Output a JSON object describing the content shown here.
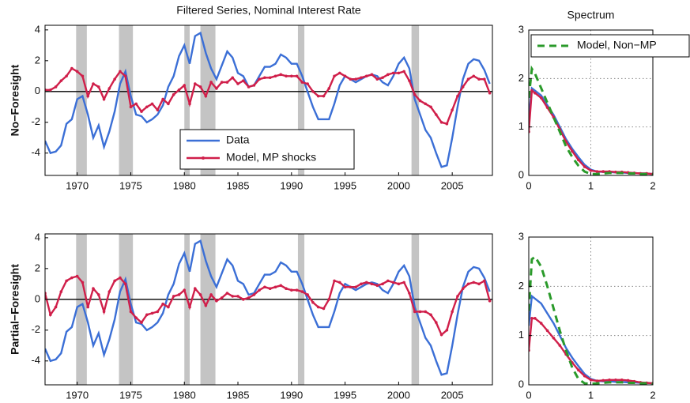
{
  "chart_data": [
    {
      "type": "line",
      "title": "Filtered Series, Nominal Interest Rate",
      "ylabel": "No−Foresight",
      "x": [
        1967,
        1967.5,
        1968,
        1968.5,
        1969,
        1969.5,
        1970,
        1970.5,
        1971,
        1971.5,
        1972,
        1972.5,
        1973,
        1973.5,
        1974,
        1974.5,
        1975,
        1975.5,
        1976,
        1976.5,
        1977,
        1977.5,
        1978,
        1978.5,
        1979,
        1979.5,
        1980,
        1980.5,
        1981,
        1981.5,
        1982,
        1982.5,
        1983,
        1983.5,
        1984,
        1984.5,
        1985,
        1985.5,
        1986,
        1986.5,
        1987,
        1987.5,
        1988,
        1988.5,
        1989,
        1989.5,
        1990,
        1990.5,
        1991,
        1991.5,
        1992,
        1992.5,
        1993,
        1993.5,
        1994,
        1994.5,
        1995,
        1995.5,
        1996,
        1996.5,
        1997,
        1997.5,
        1998,
        1998.5,
        1999,
        1999.5,
        2000,
        2000.5,
        2001,
        2001.5,
        2002,
        2002.5,
        2003,
        2003.5,
        2004,
        2004.5,
        2005,
        2005.5,
        2006,
        2006.5,
        2007,
        2007.5,
        2008,
        2008.5
      ],
      "series": [
        {
          "name": "Data",
          "color": "#3b6fd6",
          "linestyle": "-",
          "marker": false,
          "values": [
            -3.2,
            -4,
            -3.9,
            -3.5,
            -2.1,
            -1.8,
            -0.5,
            -0.3,
            -1.5,
            -3.0,
            -2.2,
            -3.6,
            -2.6,
            -1.3,
            0.5,
            1.3,
            -0.3,
            -1.5,
            -1.6,
            -2.0,
            -1.8,
            -1.5,
            -0.9,
            0.3,
            1.0,
            2.3,
            3.0,
            1.8,
            3.6,
            3.8,
            2.5,
            1.5,
            0.8,
            1.7,
            2.6,
            2.2,
            1.2,
            1.0,
            0.3,
            0.4,
            1.0,
            1.6,
            1.6,
            1.8,
            2.4,
            2.2,
            1.8,
            1.8,
            1.0,
            0.0,
            -1.0,
            -1.8,
            -1.8,
            -1.8,
            -0.8,
            0.4,
            1.0,
            0.8,
            0.6,
            0.8,
            1.0,
            1.1,
            1.0,
            0.6,
            0.4,
            1.0,
            1.8,
            2.2,
            1.5,
            -0.5,
            -1.5,
            -2.5,
            -3.0,
            -4.0,
            -4.9,
            -4.8,
            -3.0,
            -1.0,
            0.8,
            1.8,
            2.1,
            2.0,
            1.4,
            0.5
          ]
        },
        {
          "name": "Model, MP shocks",
          "color": "#d01f4a",
          "linestyle": "-",
          "marker": true,
          "values": [
            0.1,
            0.1,
            0.3,
            0.7,
            1.0,
            1.5,
            1.3,
            1.0,
            -0.3,
            0.5,
            0.3,
            -0.5,
            0.2,
            0.8,
            1.3,
            1.0,
            -1.0,
            -0.8,
            -1.3,
            -1.0,
            -0.8,
            -1.2,
            -0.5,
            -0.8,
            -0.2,
            0.1,
            0.4,
            -0.8,
            0.5,
            0.3,
            -0.3,
            0.6,
            0.2,
            0.6,
            0.6,
            0.9,
            0.5,
            0.7,
            0.3,
            0.4,
            0.8,
            0.9,
            0.9,
            1.0,
            1.1,
            1.0,
            1.0,
            1.0,
            0.6,
            0.5,
            0.0,
            -0.3,
            -0.3,
            0.2,
            1.0,
            1.2,
            1.0,
            0.8,
            0.8,
            0.9,
            1.0,
            1.1,
            0.8,
            0.9,
            1.1,
            1.2,
            1.2,
            1.3,
            0.7,
            -0.2,
            -0.6,
            -0.8,
            -1.0,
            -1.5,
            -2.0,
            -2.1,
            -1.2,
            -0.3,
            0.3,
            0.8,
            1.0,
            0.8,
            0.8,
            -0.1
          ]
        }
      ],
      "shaded": [
        [
          1969.9,
          1970.9
        ],
        [
          1973.9,
          1975.2
        ],
        [
          1980.0,
          1980.5
        ],
        [
          1981.5,
          1982.9
        ],
        [
          1990.6,
          1991.2
        ],
        [
          2001.2,
          2001.9
        ]
      ],
      "xlim": [
        1967,
        2008.75
      ],
      "xticks": [
        1970,
        1975,
        1980,
        1985,
        1990,
        1995,
        2000,
        2005
      ],
      "ylim": [
        -5.45,
        4.3
      ],
      "yticks": [
        -4,
        -2,
        0,
        2,
        4
      ],
      "grid": false,
      "legend": "lower center"
    },
    {
      "type": "line",
      "title": "Spectrum",
      "x": [
        0,
        0.05,
        0.1,
        0.2,
        0.3,
        0.4,
        0.5,
        0.6,
        0.7,
        0.8,
        0.9,
        1.0,
        1.1,
        1.2,
        1.3,
        1.4,
        1.5,
        1.6,
        1.7,
        1.8,
        1.9,
        2.0
      ],
      "series": [
        {
          "color": "#3b6fd6",
          "linestyle": "-",
          "marker": false,
          "values": [
            1.2,
            1.8,
            1.75,
            1.65,
            1.45,
            1.25,
            1.0,
            0.75,
            0.55,
            0.38,
            0.22,
            0.12,
            0.08,
            0.07,
            0.07,
            0.06,
            0.06,
            0.05,
            0.05,
            0.04,
            0.04,
            0.03
          ]
        },
        {
          "color": "#d01f4a",
          "linestyle": "-",
          "marker": true,
          "values": [
            0.9,
            1.75,
            1.7,
            1.6,
            1.4,
            1.2,
            0.95,
            0.7,
            0.5,
            0.32,
            0.18,
            0.1,
            0.08,
            0.08,
            0.08,
            0.07,
            0.07,
            0.06,
            0.05,
            0.04,
            0.04,
            0.03
          ]
        },
        {
          "name": "Model, Non−MP",
          "color": "#2a9a2a",
          "linestyle": "--",
          "marker": false,
          "values": [
            1.6,
            2.2,
            2.1,
            1.8,
            1.5,
            1.2,
            0.9,
            0.6,
            0.38,
            0.2,
            0.08,
            0.03,
            0.03,
            0.04,
            0.05,
            0.05,
            0.05,
            0.04,
            0.04,
            0.03,
            0.03,
            0.02
          ]
        }
      ],
      "xlim": [
        0,
        2
      ],
      "xticks": [
        0,
        1,
        2
      ],
      "ylim": [
        0,
        3
      ],
      "yticks": [
        0,
        1,
        2,
        3
      ],
      "grid": true,
      "legend": "upper right"
    },
    {
      "type": "line",
      "ylabel": "Partial−Foresight",
      "x": [
        1967,
        1967.5,
        1968,
        1968.5,
        1969,
        1969.5,
        1970,
        1970.5,
        1971,
        1971.5,
        1972,
        1972.5,
        1973,
        1973.5,
        1974,
        1974.5,
        1975,
        1975.5,
        1976,
        1976.5,
        1977,
        1977.5,
        1978,
        1978.5,
        1979,
        1979.5,
        1980,
        1980.5,
        1981,
        1981.5,
        1982,
        1982.5,
        1983,
        1983.5,
        1984,
        1984.5,
        1985,
        1985.5,
        1986,
        1986.5,
        1987,
        1987.5,
        1988,
        1988.5,
        1989,
        1989.5,
        1990,
        1990.5,
        1991,
        1991.5,
        1992,
        1992.5,
        1993,
        1993.5,
        1994,
        1994.5,
        1995,
        1995.5,
        1996,
        1996.5,
        1997,
        1997.5,
        1998,
        1998.5,
        1999,
        1999.5,
        2000,
        2000.5,
        2001,
        2001.5,
        2002,
        2002.5,
        2003,
        2003.5,
        2004,
        2004.5,
        2005,
        2005.5,
        2006,
        2006.5,
        2007,
        2007.5,
        2008,
        2008.5
      ],
      "series": [
        {
          "color": "#3b6fd6",
          "linestyle": "-",
          "marker": false,
          "values": [
            -3.2,
            -4,
            -3.9,
            -3.5,
            -2.1,
            -1.8,
            -0.5,
            -0.3,
            -1.5,
            -3.0,
            -2.2,
            -3.6,
            -2.6,
            -1.3,
            0.5,
            1.3,
            -0.3,
            -1.5,
            -1.6,
            -2.0,
            -1.8,
            -1.5,
            -0.9,
            0.3,
            1.0,
            2.3,
            3.0,
            1.8,
            3.6,
            3.8,
            2.5,
            1.5,
            0.8,
            1.7,
            2.6,
            2.2,
            1.2,
            1.0,
            0.3,
            0.4,
            1.0,
            1.6,
            1.6,
            1.8,
            2.4,
            2.2,
            1.8,
            1.8,
            1.0,
            0.0,
            -1.0,
            -1.8,
            -1.8,
            -1.8,
            -0.8,
            0.4,
            1.0,
            0.8,
            0.6,
            0.8,
            1.0,
            1.1,
            1.0,
            0.6,
            0.4,
            1.0,
            1.8,
            2.2,
            1.5,
            -0.5,
            -1.5,
            -2.5,
            -3.0,
            -4.0,
            -4.9,
            -4.8,
            -3.0,
            -1.0,
            0.8,
            1.8,
            2.1,
            2.0,
            1.4,
            0.5
          ]
        },
        {
          "color": "#d01f4a",
          "linestyle": "-",
          "marker": true,
          "values": [
            0.4,
            -1.0,
            -0.5,
            0.5,
            1.2,
            1.4,
            1.5,
            1.1,
            -0.5,
            0.7,
            0.3,
            -0.8,
            0.5,
            1.2,
            1.4,
            1.0,
            -0.8,
            -1.2,
            -1.5,
            -1.0,
            -0.9,
            -0.8,
            -0.3,
            -0.5,
            0.2,
            0.3,
            0.6,
            -0.5,
            0.7,
            0.3,
            -0.4,
            0.3,
            -0.1,
            0.1,
            0.4,
            0.2,
            0.2,
            0.0,
            0.1,
            0.3,
            0.6,
            0.8,
            0.7,
            0.8,
            0.9,
            0.7,
            0.6,
            0.6,
            0.5,
            0.3,
            -0.2,
            -0.5,
            -0.6,
            0.0,
            1.2,
            1.1,
            0.8,
            0.8,
            0.8,
            1.0,
            1.1,
            1.0,
            0.9,
            1.0,
            1.2,
            1.1,
            1.0,
            1.1,
            0.4,
            -0.8,
            -0.8,
            -0.8,
            -1.0,
            -1.5,
            -2.3,
            -2.0,
            -0.8,
            0.2,
            0.7,
            1.0,
            1.1,
            1.0,
            1.2,
            -0.1
          ]
        }
      ],
      "shaded": [
        [
          1969.9,
          1970.9
        ],
        [
          1973.9,
          1975.2
        ],
        [
          1980.0,
          1980.5
        ],
        [
          1981.5,
          1982.9
        ],
        [
          1990.6,
          1991.2
        ],
        [
          2001.2,
          2001.9
        ]
      ],
      "xlim": [
        1967,
        2008.75
      ],
      "xticks": [
        1970,
        1975,
        1980,
        1985,
        1990,
        1995,
        2000,
        2005
      ],
      "ylim": [
        -5.55,
        4.25
      ],
      "yticks": [
        -4,
        -2,
        0,
        2,
        4
      ],
      "grid": false
    },
    {
      "type": "line",
      "x": [
        0,
        0.05,
        0.1,
        0.2,
        0.3,
        0.4,
        0.5,
        0.6,
        0.7,
        0.8,
        0.9,
        1.0,
        1.1,
        1.2,
        1.3,
        1.4,
        1.5,
        1.6,
        1.7,
        1.8,
        1.9,
        2.0
      ],
      "series": [
        {
          "color": "#3b6fd6",
          "linestyle": "-",
          "marker": false,
          "values": [
            1.2,
            1.8,
            1.75,
            1.65,
            1.45,
            1.25,
            1.0,
            0.75,
            0.55,
            0.38,
            0.22,
            0.12,
            0.08,
            0.07,
            0.07,
            0.06,
            0.06,
            0.05,
            0.05,
            0.04,
            0.04,
            0.03
          ]
        },
        {
          "color": "#d01f4a",
          "linestyle": "-",
          "marker": true,
          "values": [
            0.7,
            1.35,
            1.35,
            1.25,
            1.1,
            0.95,
            0.8,
            0.62,
            0.45,
            0.3,
            0.18,
            0.1,
            0.08,
            0.09,
            0.1,
            0.1,
            0.1,
            0.09,
            0.07,
            0.05,
            0.04,
            0.03
          ]
        },
        {
          "color": "#2a9a2a",
          "linestyle": "--",
          "marker": false,
          "values": [
            1.5,
            2.55,
            2.6,
            2.4,
            2.0,
            1.55,
            1.1,
            0.7,
            0.35,
            0.12,
            0.03,
            0.02,
            0.03,
            0.04,
            0.05,
            0.05,
            0.05,
            0.04,
            0.04,
            0.03,
            0.03,
            0.02
          ]
        }
      ],
      "xlim": [
        0,
        2
      ],
      "xticks": [
        0,
        1,
        2
      ],
      "ylim": [
        0,
        3
      ],
      "yticks": [
        0,
        1,
        2,
        3
      ],
      "grid": true
    }
  ]
}
